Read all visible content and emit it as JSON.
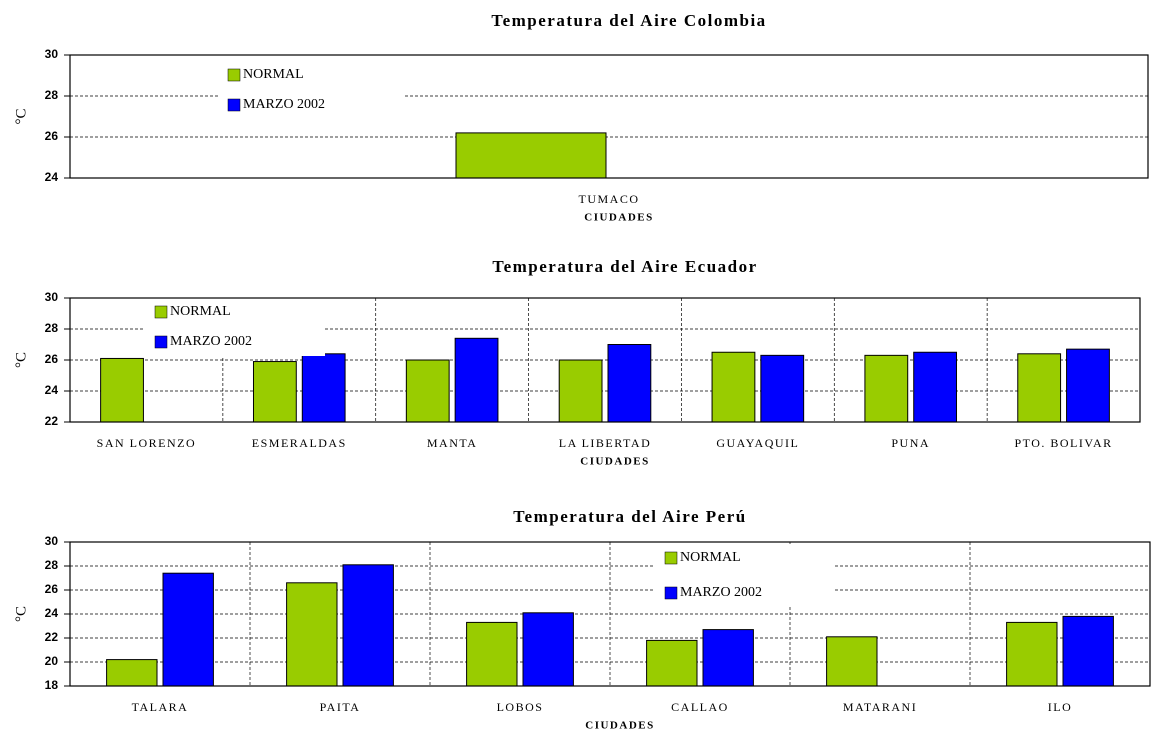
{
  "chart_data": [
    {
      "type": "bar",
      "title": "Temperatura del Aire Colombia",
      "ylabel": "°C",
      "xlabel": "CIUDADES",
      "categories": [
        "TUMACO"
      ],
      "series": [
        {
          "name": "NORMAL",
          "color": "#99cc00",
          "values": [
            26.2
          ]
        },
        {
          "name": "MARZO 2002",
          "color": "#0000ff",
          "values": [
            null
          ]
        }
      ],
      "ylim": [
        24,
        30
      ],
      "yticks": [
        24,
        26,
        28,
        30
      ],
      "grid": true,
      "category_grid": false
    },
    {
      "type": "bar",
      "title": "Temperatura del Aire Ecuador",
      "ylabel": "°C",
      "xlabel": "CIUDADES",
      "categories": [
        "SAN LORENZO",
        "ESMERALDAS",
        "MANTA",
        "LA LIBERTAD",
        "GUAYAQUIL",
        "PUNA",
        "PTO. BOLIVAR"
      ],
      "series": [
        {
          "name": "NORMAL",
          "color": "#99cc00",
          "values": [
            26.1,
            25.9,
            26.0,
            26.0,
            26.5,
            26.3,
            26.4
          ]
        },
        {
          "name": "MARZO 2002",
          "color": "#0000ff",
          "values": [
            null,
            26.4,
            27.4,
            27.0,
            26.3,
            26.5,
            26.7
          ]
        }
      ],
      "ylim": [
        22,
        30
      ],
      "yticks": [
        22,
        24,
        26,
        28,
        30
      ],
      "grid": true,
      "category_grid": true
    },
    {
      "type": "bar",
      "title": "Temperatura del Aire Perú",
      "ylabel": "°C",
      "xlabel": "CIUDADES",
      "categories": [
        "TALARA",
        "PAITA",
        "LOBOS",
        "CALLAO",
        "MATARANI",
        "ILO"
      ],
      "series": [
        {
          "name": "NORMAL",
          "color": "#99cc00",
          "values": [
            20.2,
            26.6,
            23.3,
            21.8,
            22.1,
            23.3
          ]
        },
        {
          "name": "MARZO 2002",
          "color": "#0000ff",
          "values": [
            27.4,
            28.1,
            24.1,
            22.7,
            null,
            23.8
          ]
        }
      ],
      "ylim": [
        18,
        30
      ],
      "yticks": [
        18,
        20,
        22,
        24,
        26,
        28,
        30
      ],
      "grid": true,
      "category_grid": true
    }
  ]
}
